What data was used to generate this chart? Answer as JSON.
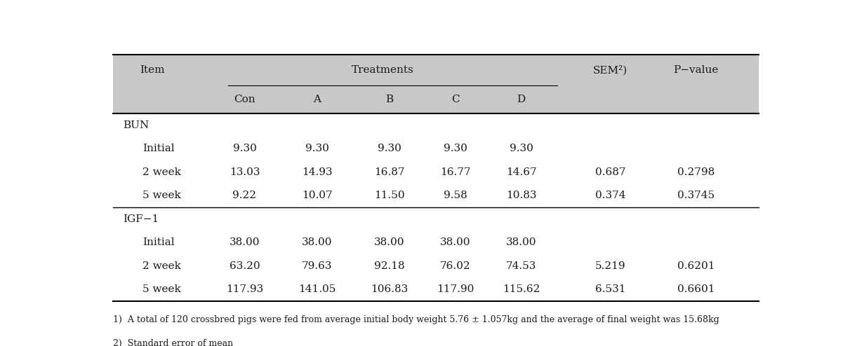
{
  "col_sub": [
    "Con",
    "A",
    "B",
    "C",
    "D"
  ],
  "sem_label": "SEM²)",
  "pval_label": "P−value",
  "item_label": "Item",
  "rows": [
    {
      "label": "BUN",
      "indent": false,
      "values": [
        "",
        "",
        "",
        "",
        "",
        "",
        ""
      ]
    },
    {
      "label": "Initial",
      "indent": true,
      "values": [
        "9.30",
        "9.30",
        "9.30",
        "9.30",
        "9.30",
        "",
        ""
      ]
    },
    {
      "label": "2 week",
      "indent": true,
      "values": [
        "13.03",
        "14.93",
        "16.87",
        "16.77",
        "14.67",
        "0.687",
        "0.2798"
      ]
    },
    {
      "label": "5 week",
      "indent": true,
      "values": [
        "9.22",
        "10.07",
        "11.50",
        "9.58",
        "10.83",
        "0.374",
        "0.3745"
      ]
    },
    {
      "label": "IGF−1",
      "indent": false,
      "values": [
        "",
        "",
        "",
        "",
        "",
        "",
        ""
      ]
    },
    {
      "label": "Initial",
      "indent": true,
      "values": [
        "38.00",
        "38.00",
        "38.00",
        "38.00",
        "38.00",
        "",
        ""
      ]
    },
    {
      "label": "2 week",
      "indent": true,
      "values": [
        "63.20",
        "79.63",
        "92.18",
        "76.02",
        "74.53",
        "5.219",
        "0.6201"
      ]
    },
    {
      "label": "5 week",
      "indent": true,
      "values": [
        "117.93",
        "141.05",
        "106.83",
        "117.90",
        "115.62",
        "6.531",
        "0.6601"
      ]
    }
  ],
  "footnote1": "1)  A total of 120 crossbred pigs were fed from average initial body weight 5.76 ± 1.057kg and the average of final weight was 15.68kg",
  "footnote2": "2)  Standard error of mean",
  "header_bg": "#c8c8c8",
  "text_color": "#1a1a1a",
  "font_size": 11,
  "fig_width": 12.11,
  "fig_height": 4.94
}
